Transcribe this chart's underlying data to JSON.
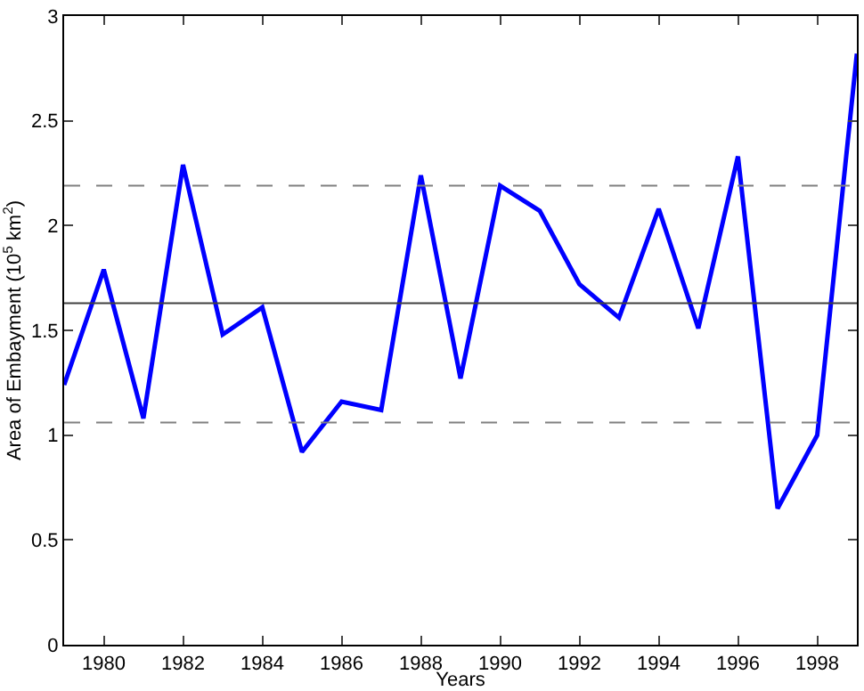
{
  "chart_data": {
    "type": "line",
    "xlabel": "Years",
    "ylabel": "Area of Embayment (10$^{5}$ km$^{2}$)",
    "x": [
      1979,
      1980,
      1981,
      1982,
      1983,
      1984,
      1985,
      1986,
      1987,
      1988,
      1989,
      1990,
      1991,
      1992,
      1993,
      1994,
      1995,
      1996,
      1997,
      1998,
      1999
    ],
    "series": [
      {
        "color": "#0000ff",
        "values": [
          1.24,
          1.79,
          1.08,
          2.29,
          1.48,
          1.61,
          0.92,
          1.16,
          1.12,
          2.24,
          1.27,
          2.19,
          2.07,
          1.72,
          1.56,
          2.08,
          1.51,
          2.33,
          0.65,
          1.0,
          2.82
        ]
      }
    ],
    "xlim": [
      1979,
      1999
    ],
    "xticks": [
      1980,
      1982,
      1984,
      1986,
      1988,
      1990,
      1992,
      1994,
      1996,
      1998
    ],
    "ylim": [
      0,
      3
    ],
    "yticks": [
      0,
      0.5,
      1,
      1.5,
      2,
      2.5,
      3
    ],
    "ref_lines": [
      {
        "axis": "y",
        "value": 1.63,
        "color": "#404040",
        "line_style": "solid"
      },
      {
        "axis": "y",
        "value": 2.19,
        "color": "#808080",
        "line_style": "dashed"
      },
      {
        "axis": "y",
        "value": 1.06,
        "color": "#808080",
        "line_style": "dashed"
      }
    ],
    "marker": "none",
    "line_style": "solid"
  }
}
